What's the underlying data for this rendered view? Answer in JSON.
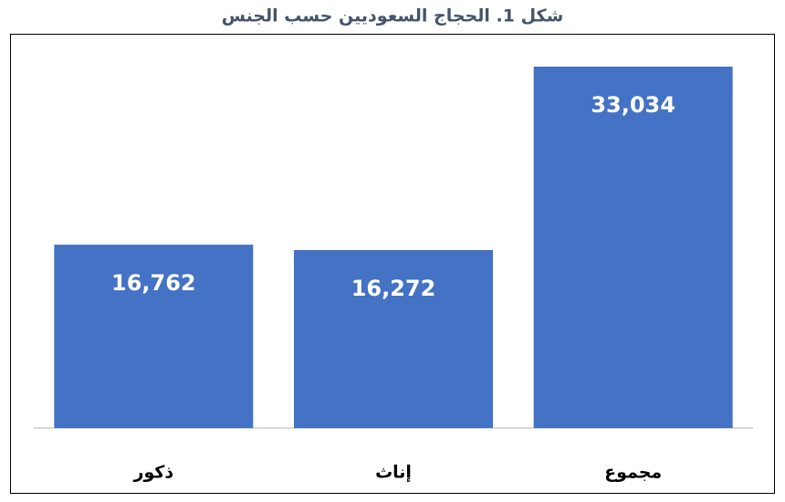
{
  "chart_data": {
    "type": "bar",
    "title": "شكل 1.  الحجاج السعوديين حسب الجنس",
    "categories": [
      "ذكور",
      "إناث",
      "مجموع"
    ],
    "values": [
      16762,
      16272,
      33034
    ],
    "value_labels": [
      "16,762",
      "16,272",
      "33,034"
    ],
    "color": "#4472c4"
  }
}
